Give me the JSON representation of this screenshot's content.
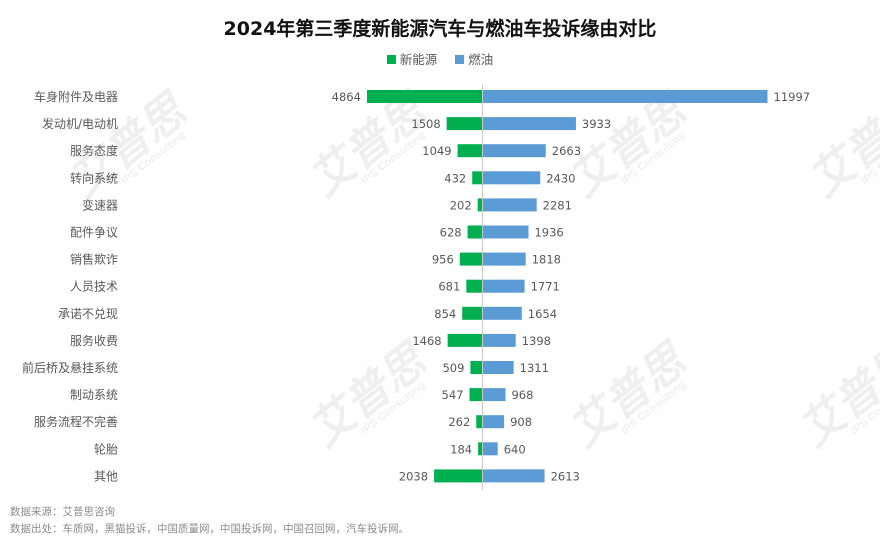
{
  "title": "2024年第三季度新能源汽车与燃油车投诉缘由对比",
  "legend": [
    {
      "label": "新能源",
      "color": "#00B050"
    },
    {
      "label": "燃油",
      "color": "#5B9BD5"
    }
  ],
  "chart_data": {
    "type": "bar",
    "orientation": "horizontal-diverging",
    "categories": [
      "车身附件及电器",
      "发动机/电动机",
      "服务态度",
      "转向系统",
      "变速器",
      "配件争议",
      "销售欺诈",
      "人员技术",
      "承诺不兑现",
      "服务收费",
      "前后桥及悬挂系统",
      "制动系统",
      "服务流程不完善",
      "轮胎",
      "其他"
    ],
    "series": [
      {
        "name": "新能源",
        "color": "#00B050",
        "values": [
          4864,
          1508,
          1049,
          432,
          202,
          628,
          956,
          681,
          854,
          1468,
          509,
          547,
          262,
          184,
          2038
        ]
      },
      {
        "name": "燃油",
        "color": "#5B9BD5",
        "values": [
          11997,
          3933,
          2663,
          2430,
          2281,
          1936,
          1818,
          1771,
          1654,
          1398,
          1311,
          968,
          908,
          640,
          2613
        ]
      }
    ],
    "grid": false,
    "legend_position": "top"
  },
  "watermark": {
    "brand": "艾普思",
    "sub": "IPS Consulting"
  },
  "footer": {
    "source": "数据来源：艾普思咨询",
    "origin": "数据出处：车质网，黑猫投诉，中国质量网，中国投诉网，中国召回网，汽车投诉网。"
  }
}
